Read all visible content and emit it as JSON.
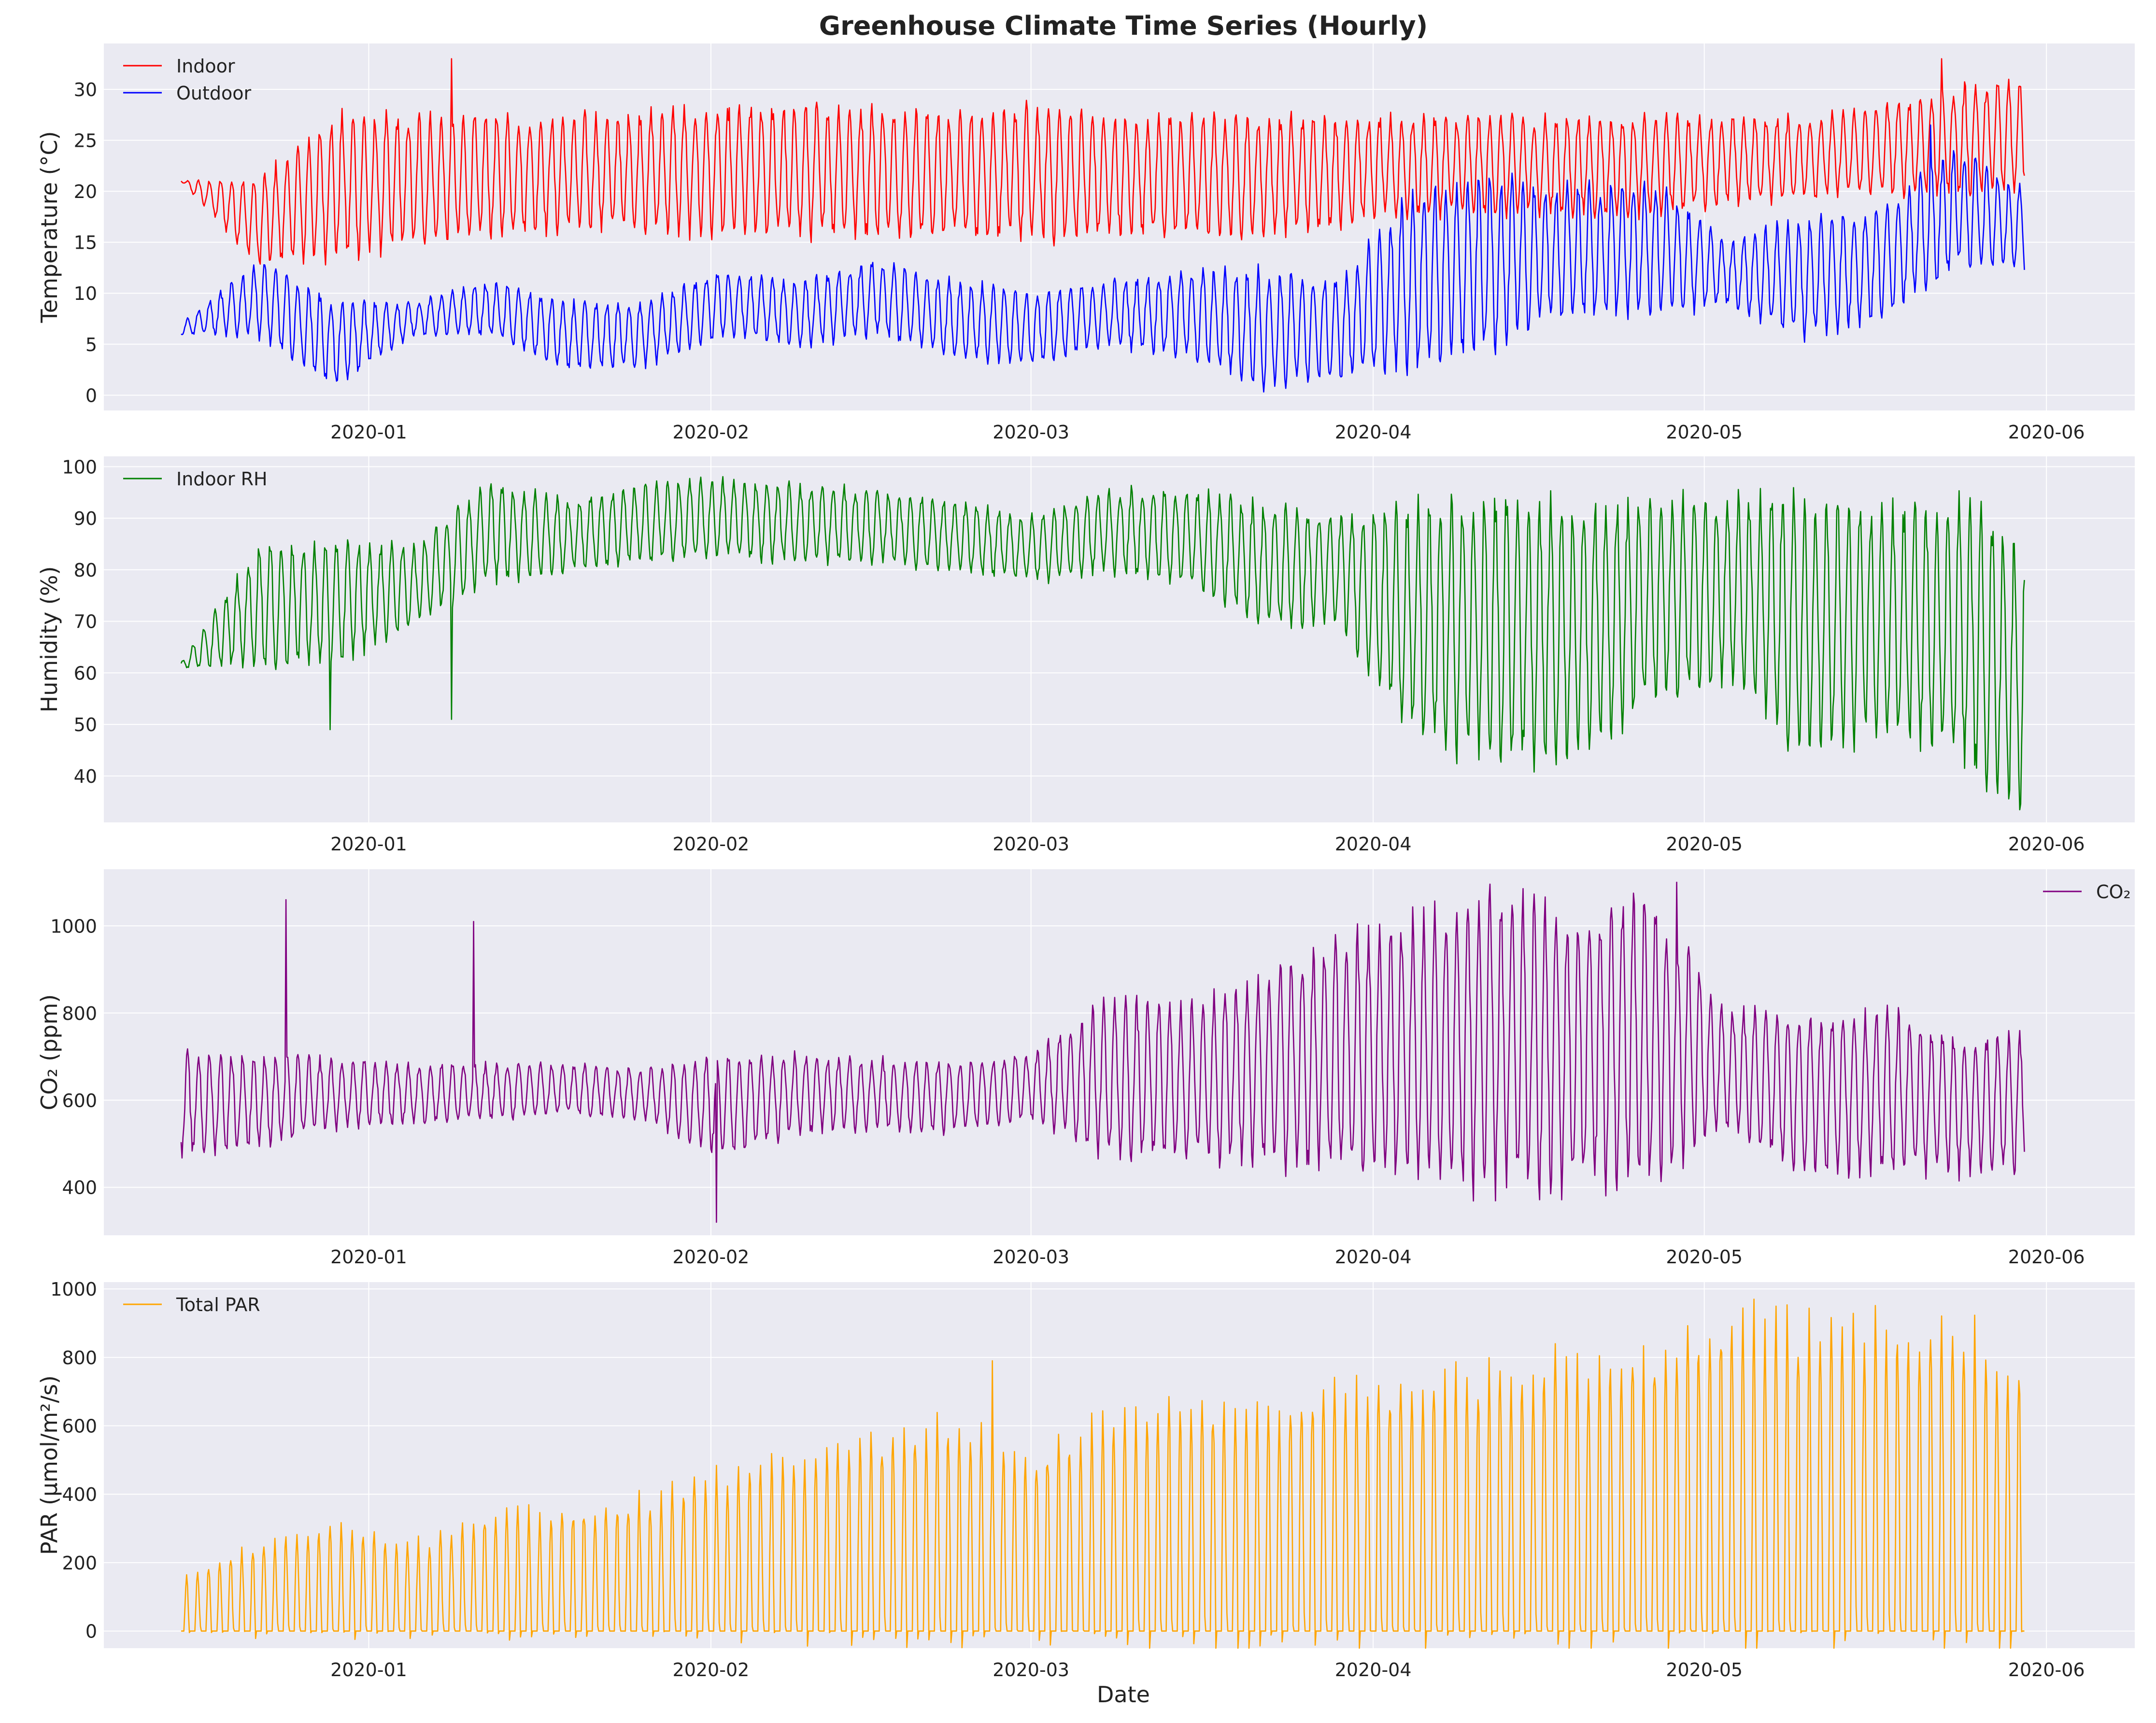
{
  "figure_title": "Greenhouse Climate Time Series (Hourly)",
  "colors": {
    "panel_bg": "#eaeaf2",
    "grid": "#ffffff",
    "indoor_temp": "#ff0000",
    "outdoor_temp": "#0000ff",
    "humidity": "#008000",
    "co2": "#800080",
    "par": "#ffa500"
  },
  "shared_x_axis": {
    "type": "date",
    "range": [
      "2019-12-08",
      "2020-06-09"
    ],
    "tick_labels": [
      "2020-01",
      "2020-02",
      "2020-03",
      "2020-04",
      "2020-05",
      "2020-06"
    ],
    "xlabel": "Date"
  },
  "chart_data": [
    {
      "type": "line",
      "ylabel": "Temperature (°C)",
      "ylim": [
        -1.5,
        34.5
      ],
      "yticks": [
        0,
        5,
        10,
        15,
        20,
        25,
        30
      ],
      "legend_position": "top-left",
      "grid": true,
      "x_start": "2019-12-15",
      "x_end": "2020-05-30",
      "series": [
        {
          "name": "Indoor",
          "color": "#ff0000",
          "dates": [
            "2019-12-15",
            "2019-12-22",
            "2019-12-29",
            "2020-01-05",
            "2020-01-12",
            "2020-01-19",
            "2020-01-26",
            "2020-02-02",
            "2020-02-09",
            "2020-02-16",
            "2020-02-23",
            "2020-03-01",
            "2020-03-08",
            "2020-03-15",
            "2020-03-22",
            "2020-03-29",
            "2020-04-05",
            "2020-04-12",
            "2020-04-19",
            "2020-04-26",
            "2020-05-03",
            "2020-05-10",
            "2020-05-17",
            "2020-05-24",
            "2020-05-30"
          ],
          "daily_min": [
            21,
            13,
            14,
            15,
            16,
            16.5,
            16.5,
            16,
            16,
            16,
            16,
            15.5,
            16,
            16,
            16,
            17,
            18,
            18,
            18,
            18,
            19,
            19.5,
            20,
            20,
            20
          ],
          "daily_max": [
            21,
            21,
            27,
            27,
            27,
            27,
            27.5,
            28,
            28,
            28,
            27,
            28,
            27,
            27,
            27,
            27,
            27,
            27,
            27,
            27,
            27,
            27,
            28,
            30,
            31
          ],
          "spikes": [
            {
              "date": "2020-01-08",
              "value": 33
            },
            {
              "date": "2020-05-22",
              "value": 33
            }
          ]
        },
        {
          "name": "Outdoor",
          "color": "#0000ff",
          "dates": [
            "2019-12-15",
            "2019-12-22",
            "2019-12-29",
            "2020-01-05",
            "2020-01-12",
            "2020-01-19",
            "2020-01-26",
            "2020-02-02",
            "2020-02-09",
            "2020-02-16",
            "2020-02-23",
            "2020-03-01",
            "2020-03-08",
            "2020-03-15",
            "2020-03-22",
            "2020-03-29",
            "2020-04-05",
            "2020-04-12",
            "2020-04-19",
            "2020-04-26",
            "2020-05-03",
            "2020-05-10",
            "2020-05-17",
            "2020-05-24",
            "2020-05-30"
          ],
          "daily_min": [
            6,
            6,
            1,
            6,
            6,
            2.5,
            3,
            6,
            5,
            6,
            4,
            3,
            5,
            4,
            1,
            2,
            3,
            5,
            8,
            8,
            9,
            6,
            8,
            13,
            12
          ],
          "daily_max": [
            7,
            13,
            9,
            9,
            11,
            9,
            9,
            12,
            11,
            13,
            11,
            10,
            11,
            12,
            12,
            11,
            20,
            21,
            20,
            21,
            15,
            17,
            18,
            24,
            20
          ],
          "spikes": [
            {
              "date": "2020-05-21",
              "value": 26.5
            }
          ]
        }
      ]
    },
    {
      "type": "line",
      "ylabel": "Humidity (%)",
      "ylim": [
        31,
        102
      ],
      "yticks": [
        40,
        50,
        60,
        70,
        80,
        90,
        100
      ],
      "legend_position": "top-left",
      "grid": true,
      "x_start": "2019-12-15",
      "x_end": "2020-05-30",
      "series": [
        {
          "name": "Indoor RH",
          "color": "#008000",
          "dates": [
            "2019-12-15",
            "2019-12-22",
            "2019-12-29",
            "2020-01-05",
            "2020-01-12",
            "2020-01-19",
            "2020-01-26",
            "2020-02-02",
            "2020-02-09",
            "2020-02-16",
            "2020-02-23",
            "2020-03-01",
            "2020-03-08",
            "2020-03-15",
            "2020-03-22",
            "2020-03-29",
            "2020-04-05",
            "2020-04-12",
            "2020-04-19",
            "2020-04-26",
            "2020-05-03",
            "2020-05-10",
            "2020-05-17",
            "2020-05-24",
            "2020-05-30"
          ],
          "daily_min": [
            61,
            62,
            62,
            70,
            78,
            80,
            82,
            83,
            82,
            82,
            80,
            78,
            80,
            78,
            70,
            70,
            48,
            45,
            45,
            55,
            60,
            45,
            50,
            45,
            35
          ],
          "daily_max": [
            62,
            84,
            85,
            84,
            97,
            93,
            96,
            97,
            96,
            95,
            93,
            90,
            95,
            95,
            92,
            90,
            91,
            93,
            92,
            92,
            93,
            92,
            90,
            92,
            84
          ],
          "spikes": [
            {
              "date": "2019-12-28",
              "value": 49
            },
            {
              "date": "2020-01-08",
              "value": 51
            }
          ]
        }
      ]
    },
    {
      "type": "line",
      "ylabel": "CO₂ (ppm)",
      "ylim": [
        290,
        1130
      ],
      "yticks": [
        400,
        600,
        800,
        1000
      ],
      "legend_position": "top-right",
      "grid": true,
      "x_start": "2019-12-15",
      "x_end": "2020-05-30",
      "series": [
        {
          "name": "CO₂",
          "color": "#800080",
          "dates": [
            "2019-12-15",
            "2019-12-22",
            "2019-12-29",
            "2020-01-05",
            "2020-01-12",
            "2020-01-19",
            "2020-01-26",
            "2020-02-02",
            "2020-02-09",
            "2020-02-16",
            "2020-02-23",
            "2020-03-01",
            "2020-03-08",
            "2020-03-15",
            "2020-03-22",
            "2020-03-29",
            "2020-04-05",
            "2020-04-12",
            "2020-04-19",
            "2020-04-26",
            "2020-05-03",
            "2020-05-10",
            "2020-05-17",
            "2020-05-24",
            "2020-05-30"
          ],
          "daily_min": [
            480,
            500,
            540,
            550,
            560,
            570,
            560,
            480,
            530,
            540,
            530,
            560,
            480,
            480,
            470,
            450,
            430,
            420,
            420,
            430,
            540,
            450,
            450,
            440,
            440
          ],
          "daily_max": [
            700,
            700,
            690,
            680,
            680,
            680,
            670,
            700,
            700,
            690,
            690,
            700,
            820,
            800,
            880,
            950,
            1000,
            1050,
            1000,
            1050,
            800,
            780,
            800,
            740,
            740
          ],
          "spikes": [
            {
              "date": "2019-12-24",
              "value": 1060
            },
            {
              "date": "2020-01-10",
              "value": 1010
            },
            {
              "date": "2020-02-01",
              "value": 320
            },
            {
              "date": "2020-04-28",
              "value": 1100
            }
          ]
        }
      ]
    },
    {
      "type": "line",
      "ylabel": "PAR (μmol/m²/s)",
      "ylim": [
        -50,
        1020
      ],
      "yticks": [
        0,
        200,
        400,
        600,
        800,
        1000
      ],
      "legend_position": "top-left",
      "grid": true,
      "x_start": "2019-12-15",
      "x_end": "2020-05-30",
      "series": [
        {
          "name": "Total PAR",
          "color": "#ffa500",
          "dates": [
            "2019-12-15",
            "2019-12-22",
            "2019-12-29",
            "2020-01-05",
            "2020-01-12",
            "2020-01-19",
            "2020-01-26",
            "2020-02-02",
            "2020-02-09",
            "2020-02-16",
            "2020-02-23",
            "2020-03-01",
            "2020-03-08",
            "2020-03-15",
            "2020-03-22",
            "2020-03-29",
            "2020-04-05",
            "2020-04-12",
            "2020-04-19",
            "2020-04-26",
            "2020-05-03",
            "2020-05-10",
            "2020-05-17",
            "2020-05-24",
            "2020-05-30"
          ],
          "daily_min": [
            0,
            0,
            0,
            0,
            0,
            0,
            0,
            0,
            0,
            0,
            0,
            0,
            0,
            0,
            0,
            0,
            0,
            0,
            0,
            0,
            0,
            0,
            0,
            0,
            0
          ],
          "daily_max": [
            150,
            250,
            300,
            250,
            330,
            350,
            380,
            450,
            500,
            550,
            600,
            500,
            620,
            650,
            650,
            700,
            700,
            750,
            780,
            800,
            900,
            870,
            880,
            880,
            760
          ],
          "spikes": [
            {
              "date": "2020-02-26",
              "value": 790
            },
            {
              "date": "2020-05-05",
              "value": 970
            }
          ]
        }
      ]
    }
  ]
}
